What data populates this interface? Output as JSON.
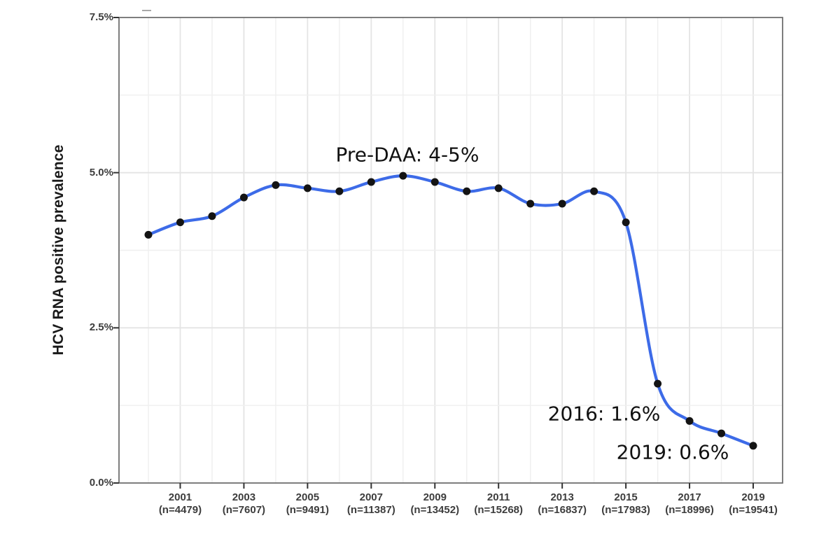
{
  "chart_data": {
    "type": "line",
    "title": "",
    "xlabel": "",
    "ylabel": "HCV RNA positive prevalence",
    "ylim": [
      0,
      7.5
    ],
    "x_range": [
      2000,
      2019
    ],
    "grid": "on",
    "legend": "none",
    "x": [
      2000,
      2001,
      2002,
      2003,
      2004,
      2005,
      2006,
      2007,
      2008,
      2009,
      2010,
      2011,
      2012,
      2013,
      2014,
      2015,
      2016,
      2017,
      2018,
      2019
    ],
    "values": [
      4.0,
      4.2,
      4.3,
      4.6,
      4.8,
      4.75,
      4.7,
      4.85,
      4.95,
      4.85,
      4.7,
      4.75,
      4.5,
      4.5,
      4.7,
      4.2,
      1.6,
      1.0,
      0.8,
      0.6
    ],
    "y_ticks": [
      {
        "value": 0.0,
        "label": "0.0%"
      },
      {
        "value": 2.5,
        "label": "2.5%"
      },
      {
        "value": 5.0,
        "label": "5.0%"
      },
      {
        "value": 7.5,
        "label": "7.5%"
      }
    ],
    "y_minor_ticks": [
      1.25,
      3.75,
      6.25
    ],
    "x_ticks": [
      {
        "year": 2001,
        "n_label": "(n=4479)"
      },
      {
        "year": 2003,
        "n_label": "(n=7607)"
      },
      {
        "year": 2005,
        "n_label": "(n=9491)"
      },
      {
        "year": 2007,
        "n_label": "(n=11387)"
      },
      {
        "year": 2009,
        "n_label": "(n=13452)"
      },
      {
        "year": 2011,
        "n_label": "(n=15268)"
      },
      {
        "year": 2013,
        "n_label": "(n=16837)"
      },
      {
        "year": 2015,
        "n_label": "(n=17983)"
      },
      {
        "year": 2017,
        "n_label": "(n=18996)"
      },
      {
        "year": 2019,
        "n_label": "(n=19541)"
      }
    ],
    "annotations": [
      {
        "text": "Pre-DAA: 4-5%"
      },
      {
        "text": "2016: 1.6%"
      },
      {
        "text": "2019: 0.6%"
      }
    ],
    "colors": {
      "line": "#3D6BE8",
      "point": "#141414",
      "grid_major": "#e4e4e4",
      "grid_minor": "#efefef",
      "panel_border": "#707070",
      "tick": "#333333",
      "background": "#ffffff"
    }
  }
}
